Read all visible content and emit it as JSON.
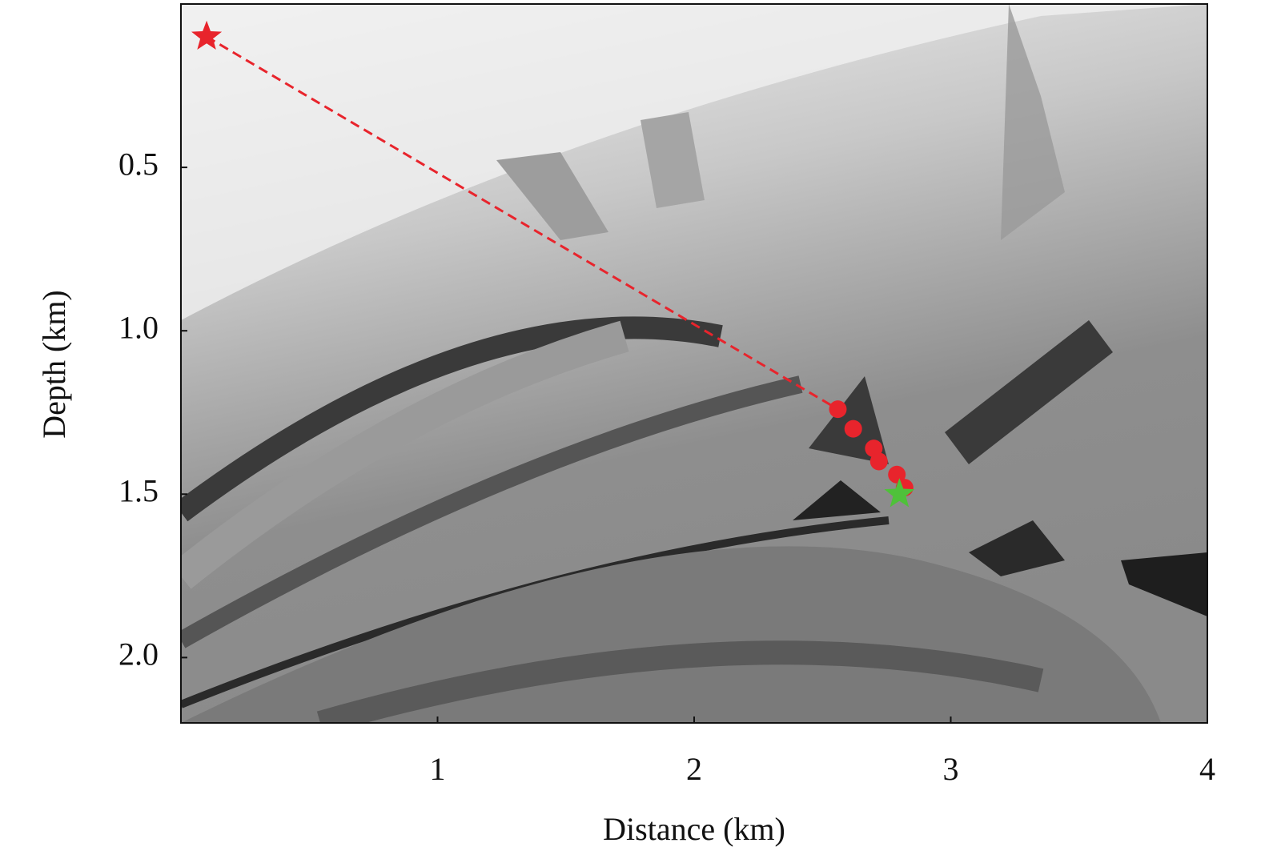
{
  "chart_data": {
    "type": "scatter",
    "xlabel": "Distance (km)",
    "ylabel": "Depth (km)",
    "xlim": [
      0,
      4
    ],
    "ylim": [
      0,
      2.2
    ],
    "y_inverted": true,
    "xticks": [
      1,
      2,
      3,
      4
    ],
    "yticks": [
      0.5,
      {
        "value": 1,
        "label": "1.0"
      },
      1.5,
      {
        "value": 2,
        "label": "2.0"
      }
    ],
    "series": [
      {
        "marker": "star",
        "color": "#e8242c",
        "x": [
          0.1
        ],
        "values": [
          0.1
        ]
      },
      {
        "marker": "circle",
        "color": "#e8242c",
        "x": [
          2.56,
          2.62,
          2.7,
          2.72,
          2.79,
          2.82
        ],
        "values": [
          1.24,
          1.3,
          1.36,
          1.4,
          1.44,
          1.48
        ]
      },
      {
        "marker": "star",
        "color": "#4fc13a",
        "x": [
          2.8
        ],
        "values": [
          1.5
        ]
      }
    ],
    "connector": {
      "from": 0,
      "to": 1,
      "color": "#e8242c",
      "dash": true
    }
  }
}
